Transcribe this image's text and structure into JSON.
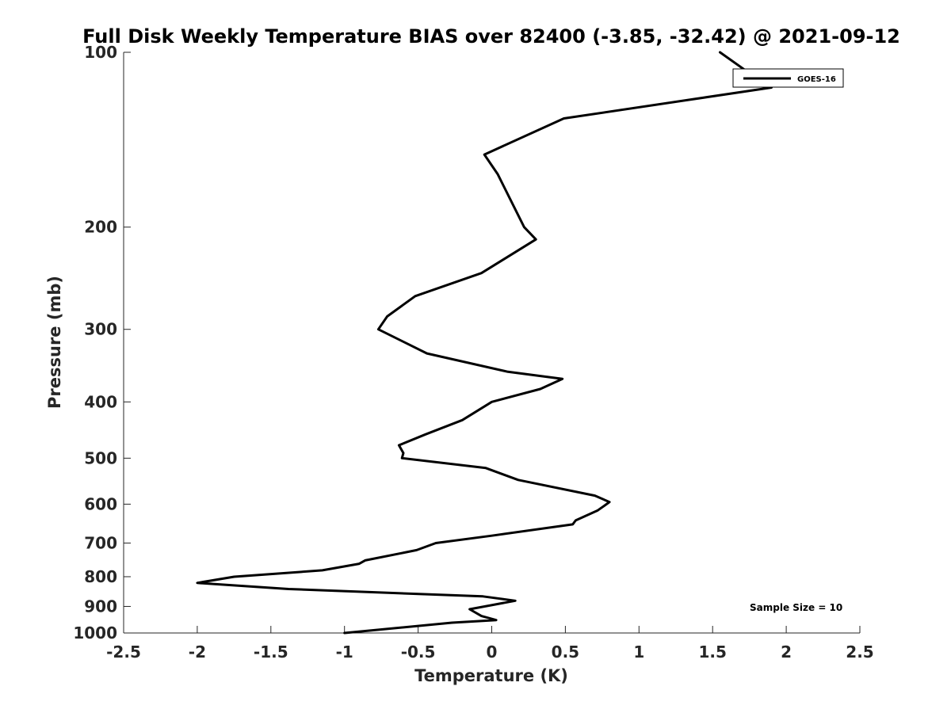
{
  "chart_data": {
    "type": "line",
    "title": "Full Disk Weekly Temperature BIAS over 82400 (-3.85, -32.42) @ 2021-09-12",
    "xlabel": "Temperature (K)",
    "ylabel": "Pressure (mb)",
    "xlim": [
      -2.5,
      2.5
    ],
    "ylim": [
      100,
      1000
    ],
    "y_scale": "log",
    "y_reversed": true,
    "x_ticks": [
      "-2.5",
      "-2",
      "-1.5",
      "-1",
      "-0.5",
      "0",
      "0.5",
      "1",
      "1.5",
      "2",
      "2.5"
    ],
    "y_ticks": [
      "100",
      "200",
      "300",
      "400",
      "500",
      "600",
      "700",
      "800",
      "900",
      "1000"
    ],
    "grid": false,
    "legend": {
      "position": "top-right",
      "entries": [
        "GOES-16"
      ]
    },
    "annotation": "Sample Size = 10",
    "series": [
      {
        "name": "GOES-16",
        "color": "#000000",
        "x": [
          1.55,
          1.78,
          1.9,
          0.49,
          -0.05,
          0.04,
          0.22,
          0.3,
          -0.07,
          -0.52,
          -0.71,
          -0.77,
          -0.44,
          0.11,
          0.48,
          0.33,
          0.0,
          -0.2,
          -0.45,
          -0.63,
          -0.6,
          -0.61,
          -0.04,
          0.18,
          0.7,
          0.8,
          0.72,
          0.57,
          0.55,
          0.0,
          -0.38,
          -0.51,
          -0.86,
          -0.9,
          -1.15,
          -1.75,
          -2.0,
          -1.38,
          -0.06,
          0.16,
          -0.15,
          -0.07,
          0.03,
          -0.27,
          -1.0
        ],
        "y": [
          100,
          110,
          115,
          130,
          150,
          162,
          200,
          210,
          240,
          263,
          285,
          300,
          330,
          355,
          365,
          380,
          400,
          430,
          455,
          475,
          490,
          500,
          520,
          545,
          580,
          595,
          615,
          640,
          650,
          680,
          700,
          720,
          750,
          760,
          780,
          800,
          820,
          840,
          865,
          880,
          910,
          935,
          950,
          960,
          1000
        ]
      }
    ]
  }
}
